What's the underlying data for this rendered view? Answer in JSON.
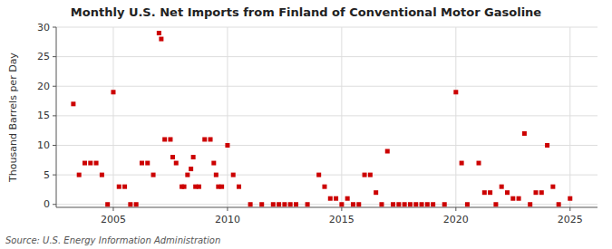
{
  "chart_data": {
    "type": "scatter",
    "title": "Monthly U.S. Net Imports from Finland of Conventional Motor Gasoline",
    "y_label": "Thousand Barrels per Day",
    "annotation": "Source: U.S. Energy Information Administration",
    "color": "#cc0000",
    "marker": "square",
    "grid": true,
    "xlim": [
      2002.5,
      2026.2
    ],
    "xticks": [
      2005,
      2010,
      2015,
      2020,
      2025
    ],
    "ylim": [
      -0.5,
      30
    ],
    "yticks": [
      0,
      5,
      10,
      15,
      20,
      25,
      30
    ],
    "x": [
      2003.25,
      2003.5,
      2003.75,
      2004.0,
      2004.25,
      2004.5,
      2004.75,
      2005.0,
      2005.25,
      2005.5,
      2005.75,
      2006.0,
      2006.25,
      2006.5,
      2006.75,
      2007.0,
      2007.1,
      2007.25,
      2007.5,
      2007.6,
      2007.75,
      2008.0,
      2008.1,
      2008.25,
      2008.4,
      2008.5,
      2008.6,
      2008.75,
      2009.0,
      2009.25,
      2009.4,
      2009.5,
      2009.6,
      2009.75,
      2010.0,
      2010.25,
      2010.5,
      2011.0,
      2011.5,
      2012.0,
      2012.25,
      2012.5,
      2012.75,
      2013.0,
      2013.5,
      2014.0,
      2014.25,
      2014.5,
      2014.75,
      2015.0,
      2015.25,
      2015.5,
      2015.75,
      2016.0,
      2016.25,
      2016.5,
      2016.75,
      2017.0,
      2017.25,
      2017.5,
      2017.75,
      2018.0,
      2018.25,
      2018.5,
      2018.75,
      2019.0,
      2019.5,
      2020.0,
      2020.25,
      2020.5,
      2021.0,
      2021.25,
      2021.5,
      2021.75,
      2022.0,
      2022.25,
      2022.5,
      2022.75,
      2023.0,
      2023.25,
      2023.5,
      2023.75,
      2024.0,
      2024.25,
      2024.5,
      2025.0
    ],
    "values": [
      17,
      5,
      7,
      7,
      7,
      5,
      0,
      19,
      3,
      3,
      0,
      0,
      7,
      7,
      5,
      29,
      28,
      11,
      11,
      8,
      7,
      3,
      3,
      5,
      6,
      8,
      3,
      3,
      11,
      11,
      7,
      5,
      3,
      3,
      10,
      5,
      3,
      0,
      0,
      0,
      0,
      0,
      0,
      0,
      0,
      5,
      3,
      1,
      1,
      0,
      1,
      0,
      0,
      5,
      5,
      2,
      0,
      9,
      0,
      0,
      0,
      0,
      0,
      0,
      0,
      0,
      0,
      19,
      7,
      0,
      7,
      2,
      2,
      0,
      3,
      2,
      1,
      1,
      12,
      0,
      2,
      2,
      10,
      3,
      0,
      1
    ]
  }
}
